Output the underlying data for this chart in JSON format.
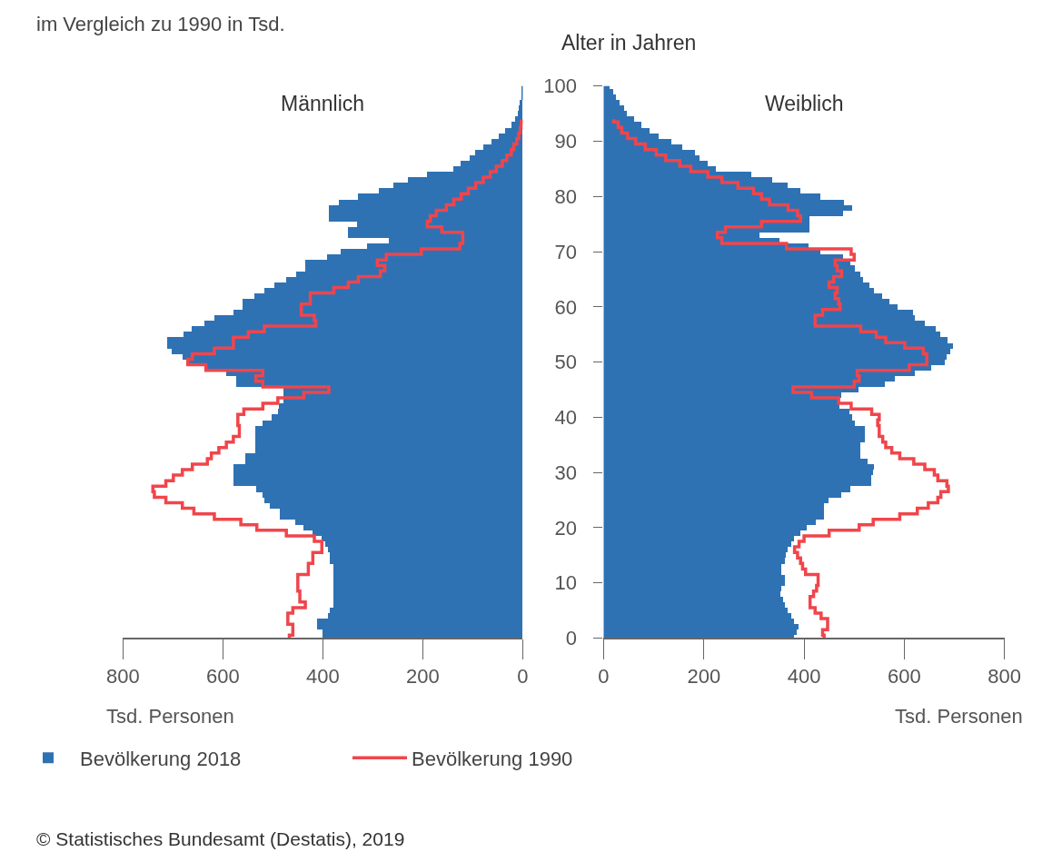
{
  "chart_data": [
    {
      "type": "bar",
      "orientation": "horizontal",
      "title": "Männlich",
      "subtitle": "im Vergleich zu 1990 in Tsd.",
      "xlabel": "Tsd. Personen",
      "x": [
        0,
        1,
        2,
        3,
        4,
        5,
        6,
        7,
        8,
        9,
        10,
        11,
        12,
        13,
        14,
        15,
        16,
        17,
        18,
        19,
        20,
        21,
        22,
        23,
        24,
        25,
        26,
        27,
        28,
        29,
        30,
        31,
        32,
        33,
        34,
        35,
        36,
        37,
        38,
        39,
        40,
        41,
        42,
        43,
        44,
        45,
        46,
        47,
        48,
        49,
        50,
        51,
        52,
        53,
        54,
        55,
        56,
        57,
        58,
        59,
        60,
        61,
        62,
        63,
        64,
        65,
        66,
        67,
        68,
        69,
        70,
        71,
        72,
        73,
        74,
        75,
        76,
        77,
        78,
        79,
        80,
        81,
        82,
        83,
        84,
        85,
        86,
        87,
        88,
        89,
        90,
        91,
        92,
        93,
        94,
        95,
        96,
        97,
        98,
        99,
        100
      ],
      "series": [
        {
          "name": "Bevölkerung 2018",
          "color": "#2e72b4",
          "values": [
            400,
            400,
            411,
            411,
            390,
            385,
            379,
            379,
            379,
            379,
            379,
            379,
            379,
            379,
            385,
            385,
            390,
            395,
            402,
            420,
            438,
            455,
            485,
            485,
            505,
            517,
            520,
            532,
            578,
            578,
            578,
            578,
            555,
            555,
            534,
            534,
            534,
            534,
            534,
            520,
            502,
            490,
            487,
            479,
            479,
            479,
            573,
            573,
            593,
            634,
            672,
            680,
            702,
            711,
            711,
            678,
            661,
            637,
            617,
            579,
            561,
            561,
            537,
            517,
            496,
            473,
            452,
            434,
            434,
            391,
            364,
            311,
            267,
            349,
            349,
            331,
            387,
            387,
            387,
            367,
            329,
            288,
            258,
            229,
            191,
            138,
            123,
            106,
            94,
            79,
            62,
            47,
            35,
            23,
            15,
            10,
            7,
            5,
            3,
            2,
            2
          ]
        },
        {
          "name": "Bevölkerung 1990",
          "type": "step",
          "color": "#f0454b",
          "values": [
            467,
            460,
            460,
            470,
            470,
            460,
            435,
            446,
            446,
            450,
            450,
            450,
            429,
            429,
            420,
            420,
            402,
            402,
            417,
            473,
            532,
            564,
            617,
            658,
            681,
            714,
            737,
            740,
            714,
            699,
            681,
            661,
            631,
            623,
            608,
            593,
            579,
            567,
            567,
            570,
            570,
            558,
            520,
            490,
            438,
            388,
            520,
            534,
            520,
            634,
            670,
            661,
            617,
            579,
            579,
            549,
            517,
            414,
            417,
            443,
            443,
            425,
            425,
            378,
            349,
            329,
            285,
            276,
            291,
            273,
            203,
            126,
            120,
            120,
            162,
            191,
            185,
            173,
            153,
            138,
            123,
            109,
            94,
            79,
            65,
            53,
            41,
            32,
            23,
            18,
            12,
            8,
            5,
            3,
            2,
            null,
            null,
            null,
            null,
            null,
            null
          ]
        }
      ],
      "xlim": [
        800,
        0
      ],
      "xticks": [
        800,
        600,
        400,
        200,
        0
      ],
      "ylim": [
        0,
        100
      ],
      "yticks": [
        0,
        10,
        20,
        30,
        40,
        50,
        60,
        70,
        80,
        90,
        100
      ],
      "tick_labels": "x",
      "legend": "bottom left",
      "annotations": [
        "© Statistisches Bundesamt (Destatis), 2019"
      ]
    },
    {
      "type": "bar",
      "orientation": "horizontal",
      "title": "Weiblich",
      "xlabel": "Tsd. Personen",
      "ylabel": "Alter in Jahren",
      "x": [
        0,
        1,
        2,
        3,
        4,
        5,
        6,
        7,
        8,
        9,
        10,
        11,
        12,
        13,
        14,
        15,
        16,
        17,
        18,
        19,
        20,
        21,
        22,
        23,
        24,
        25,
        26,
        27,
        28,
        29,
        30,
        31,
        32,
        33,
        34,
        35,
        36,
        37,
        38,
        39,
        40,
        41,
        42,
        43,
        44,
        45,
        46,
        47,
        48,
        49,
        50,
        51,
        52,
        53,
        54,
        55,
        56,
        57,
        58,
        59,
        60,
        61,
        62,
        63,
        64,
        65,
        66,
        67,
        68,
        69,
        70,
        71,
        72,
        73,
        74,
        75,
        76,
        77,
        78,
        79,
        80,
        81,
        82,
        83,
        84,
        85,
        86,
        87,
        88,
        89,
        90,
        91,
        92,
        93,
        94,
        95,
        96,
        97,
        98,
        99,
        100
      ],
      "series": [
        {
          "color": "#2e72b4",
          "values": [
            381,
            387,
            390,
            381,
            375,
            368,
            362,
            359,
            353,
            356,
            362,
            362,
            356,
            356,
            362,
            365,
            368,
            375,
            381,
            393,
            406,
            425,
            441,
            441,
            441,
            450,
            475,
            494,
            535,
            535,
            538,
            541,
            528,
            513,
            513,
            513,
            522,
            522,
            522,
            503,
            497,
            491,
            472,
            472,
            475,
            510,
            563,
            582,
            622,
            654,
            682,
            685,
            692,
            698,
            688,
            673,
            663,
            641,
            622,
            619,
            588,
            572,
            557,
            541,
            531,
            519,
            513,
            503,
            494,
            478,
            434,
            409,
            352,
            312,
            412,
            412,
            412,
            478,
            497,
            481,
            434,
            393,
            368,
            337,
            296,
            224,
            208,
            192,
            183,
            158,
            136,
            111,
            92,
            76,
            61,
            48,
            42,
            32,
            26,
            20,
            13
          ]
        },
        {
          "type": "step",
          "color": "#f0454b",
          "values": [
            440,
            437,
            447,
            447,
            434,
            422,
            412,
            412,
            419,
            425,
            428,
            428,
            403,
            397,
            393,
            387,
            381,
            390,
            400,
            450,
            510,
            538,
            591,
            626,
            648,
            667,
            673,
            688,
            685,
            667,
            660,
            641,
            619,
            591,
            575,
            563,
            557,
            550,
            550,
            547,
            550,
            535,
            494,
            469,
            415,
            378,
            500,
            510,
            506,
            610,
            645,
            645,
            638,
            601,
            563,
            544,
            513,
            422,
            422,
            437,
            472,
            469,
            462,
            466,
            450,
            459,
            475,
            466,
            462,
            500,
            494,
            365,
            236,
            227,
            243,
            315,
            393,
            387,
            368,
            331,
            315,
            299,
            268,
            236,
            208,
            174,
            152,
            124,
            105,
            83,
            64,
            48,
            36,
            29,
            20,
            null,
            null,
            null,
            null,
            null,
            null
          ]
        }
      ],
      "xlim": [
        0,
        800
      ],
      "xticks": [
        0,
        200,
        400,
        600,
        800
      ],
      "ylim": [
        0,
        100
      ],
      "yticks": [
        0,
        10,
        20,
        30,
        40,
        50,
        60,
        70,
        80,
        90,
        100
      ]
    }
  ]
}
